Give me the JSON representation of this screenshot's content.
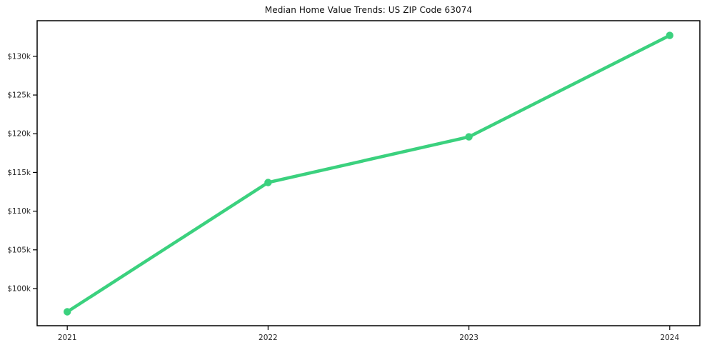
{
  "figure": {
    "background": "#ffffff"
  },
  "chart_data": {
    "type": "line",
    "title": "Median Home Value Trends: US ZIP Code 63074",
    "x": [
      "2021",
      "2022",
      "2023",
      "2024"
    ],
    "series": [
      {
        "name": "Median home value",
        "values": [
          97000,
          113700,
          119600,
          132700
        ]
      }
    ],
    "xlabel": "",
    "ylabel": "",
    "ylim": [
      95200,
      134600
    ],
    "yticks": {
      "values": [
        100000,
        105000,
        110000,
        115000,
        120000,
        125000,
        130000
      ],
      "labels": [
        "$100k",
        "$105k",
        "$110k",
        "$115k",
        "$120k",
        "$125k",
        "$130k"
      ]
    },
    "grid": false,
    "legend_position": "none",
    "marker": "circle",
    "line_color": "#3bd17e",
    "axis_color": "#000000",
    "tick_label_color": "#262626",
    "title_color": "#111111"
  }
}
